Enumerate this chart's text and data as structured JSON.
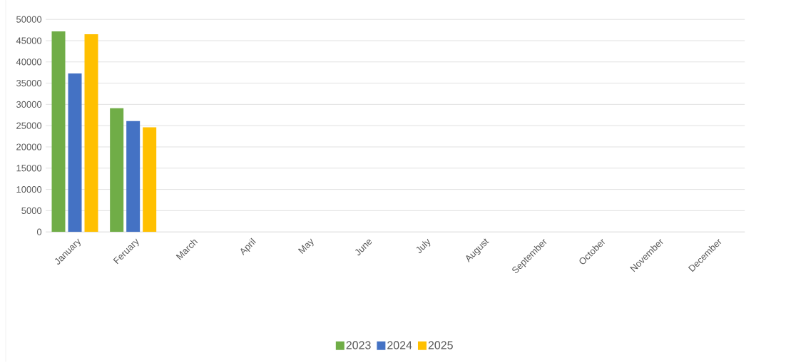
{
  "chart_data": {
    "type": "bar",
    "categories": [
      "January",
      "Feruary",
      "March",
      "April",
      "May",
      "June",
      "July",
      "August",
      "September",
      "October",
      "November",
      "December"
    ],
    "series": [
      {
        "name": "2023",
        "color": "#70ad47",
        "values": [
          47200,
          29100,
          null,
          null,
          null,
          null,
          null,
          null,
          null,
          null,
          null,
          null
        ]
      },
      {
        "name": "2024",
        "color": "#4472c4",
        "values": [
          37300,
          26100,
          null,
          null,
          null,
          null,
          null,
          null,
          null,
          null,
          null,
          null
        ]
      },
      {
        "name": "2025",
        "color": "#ffc000",
        "values": [
          46500,
          24600,
          null,
          null,
          null,
          null,
          null,
          null,
          null,
          null,
          null,
          null
        ]
      }
    ],
    "ylim": [
      0,
      50000
    ],
    "yticks": [
      0,
      5000,
      10000,
      15000,
      20000,
      25000,
      30000,
      35000,
      40000,
      45000,
      50000
    ],
    "grid": "y",
    "legend": "bottom"
  }
}
